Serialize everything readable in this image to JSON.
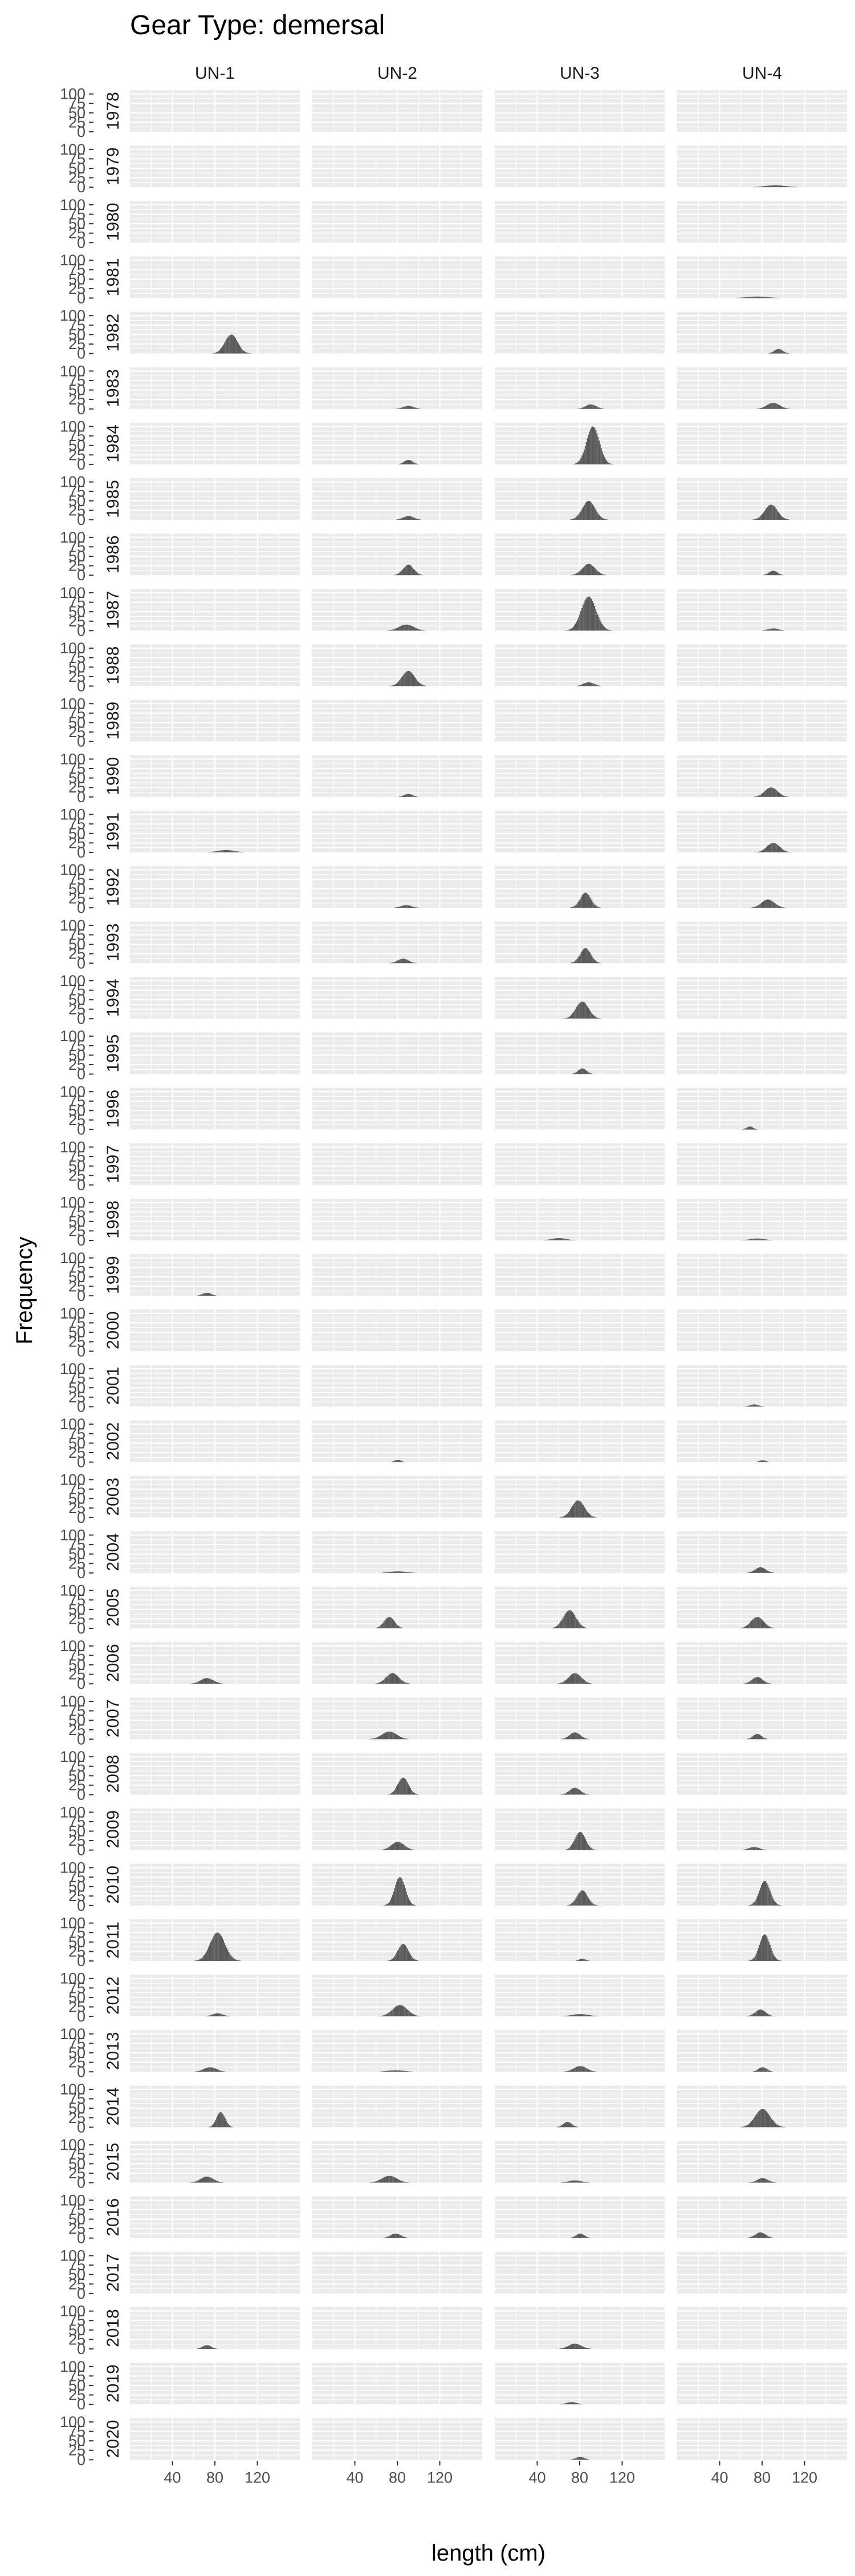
{
  "chart_data": {
    "type": "histogram-facet-grid",
    "title": "Gear Type: demersal",
    "xlabel": "length (cm)",
    "ylabel": "Frequency",
    "columns": [
      "UN-1",
      "UN-2",
      "UN-3",
      "UN-4"
    ],
    "rows": [
      "1978",
      "1979",
      "1980",
      "1981",
      "1982",
      "1983",
      "1984",
      "1985",
      "1986",
      "1987",
      "1988",
      "1989",
      "1990",
      "1991",
      "1992",
      "1993",
      "1994",
      "1995",
      "1996",
      "1997",
      "1998",
      "1999",
      "2000",
      "2001",
      "2002",
      "2003",
      "2004",
      "2005",
      "2006",
      "2007",
      "2008",
      "2009",
      "2010",
      "2011",
      "2012",
      "2013",
      "2014",
      "2015",
      "2016",
      "2017",
      "2018",
      "2019",
      "2020"
    ],
    "xlim": [
      0,
      160
    ],
    "x_ticks": [
      40,
      80,
      120
    ],
    "x_tick_labels": [
      "40",
      "80",
      "120"
    ],
    "ylim": [
      0,
      110
    ],
    "y_ticks": [
      0,
      25,
      50,
      75,
      100
    ],
    "y_tick_labels": [
      "0",
      "25",
      "50",
      "75",
      "100"
    ],
    "bar_color": "#595959",
    "panel_color": "#ebebeb",
    "gridline_color": "#ffffff",
    "distributions": [
      {
        "year": "1979",
        "column": "UN-4",
        "peak_length": 92,
        "spread": 10,
        "peak_count": 5
      },
      {
        "year": "1981",
        "column": "UN-4",
        "peak_length": 75,
        "spread": 10,
        "peak_count": 4
      },
      {
        "year": "1982",
        "column": "UN-1",
        "peak_length": 95,
        "spread": 6,
        "peak_count": 50
      },
      {
        "year": "1982",
        "column": "UN-4",
        "peak_length": 95,
        "spread": 4,
        "peak_count": 12
      },
      {
        "year": "1983",
        "column": "UN-2",
        "peak_length": 90,
        "spread": 5,
        "peak_count": 8
      },
      {
        "year": "1983",
        "column": "UN-3",
        "peak_length": 90,
        "spread": 5,
        "peak_count": 12
      },
      {
        "year": "1983",
        "column": "UN-4",
        "peak_length": 90,
        "spread": 6,
        "peak_count": 16
      },
      {
        "year": "1984",
        "column": "UN-2",
        "peak_length": 90,
        "spread": 4,
        "peak_count": 12
      },
      {
        "year": "1984",
        "column": "UN-3",
        "peak_length": 92,
        "spread": 6,
        "peak_count": 100
      },
      {
        "year": "1985",
        "column": "UN-2",
        "peak_length": 90,
        "spread": 5,
        "peak_count": 10
      },
      {
        "year": "1985",
        "column": "UN-3",
        "peak_length": 88,
        "spread": 6,
        "peak_count": 50
      },
      {
        "year": "1985",
        "column": "UN-4",
        "peak_length": 88,
        "spread": 6,
        "peak_count": 40
      },
      {
        "year": "1986",
        "column": "UN-2",
        "peak_length": 90,
        "spread": 5,
        "peak_count": 28
      },
      {
        "year": "1986",
        "column": "UN-3",
        "peak_length": 88,
        "spread": 6,
        "peak_count": 30
      },
      {
        "year": "1986",
        "column": "UN-4",
        "peak_length": 90,
        "spread": 4,
        "peak_count": 12
      },
      {
        "year": "1987",
        "column": "UN-2",
        "peak_length": 88,
        "spread": 7,
        "peak_count": 16
      },
      {
        "year": "1987",
        "column": "UN-3",
        "peak_length": 88,
        "spread": 7,
        "peak_count": 90
      },
      {
        "year": "1987",
        "column": "UN-4",
        "peak_length": 90,
        "spread": 5,
        "peak_count": 6
      },
      {
        "year": "1988",
        "column": "UN-2",
        "peak_length": 90,
        "spread": 6,
        "peak_count": 40
      },
      {
        "year": "1988",
        "column": "UN-3",
        "peak_length": 88,
        "spread": 5,
        "peak_count": 10
      },
      {
        "year": "1990",
        "column": "UN-2",
        "peak_length": 90,
        "spread": 4,
        "peak_count": 8
      },
      {
        "year": "1990",
        "column": "UN-4",
        "peak_length": 88,
        "spread": 6,
        "peak_count": 25
      },
      {
        "year": "1991",
        "column": "UN-1",
        "peak_length": 90,
        "spread": 8,
        "peak_count": 6
      },
      {
        "year": "1991",
        "column": "UN-4",
        "peak_length": 90,
        "spread": 6,
        "peak_count": 25
      },
      {
        "year": "1992",
        "column": "UN-2",
        "peak_length": 88,
        "spread": 5,
        "peak_count": 7
      },
      {
        "year": "1992",
        "column": "UN-3",
        "peak_length": 85,
        "spread": 5,
        "peak_count": 40
      },
      {
        "year": "1992",
        "column": "UN-4",
        "peak_length": 85,
        "spread": 6,
        "peak_count": 22
      },
      {
        "year": "1993",
        "column": "UN-2",
        "peak_length": 85,
        "spread": 5,
        "peak_count": 12
      },
      {
        "year": "1993",
        "column": "UN-3",
        "peak_length": 85,
        "spread": 5,
        "peak_count": 40
      },
      {
        "year": "1994",
        "column": "UN-3",
        "peak_length": 82,
        "spread": 6,
        "peak_count": 45
      },
      {
        "year": "1995",
        "column": "UN-3",
        "peak_length": 82,
        "spread": 4,
        "peak_count": 15
      },
      {
        "year": "1996",
        "column": "UN-4",
        "peak_length": 68,
        "spread": 3,
        "peak_count": 8
      },
      {
        "year": "1998",
        "column": "UN-3",
        "peak_length": 60,
        "spread": 7,
        "peak_count": 6
      },
      {
        "year": "1998",
        "column": "UN-4",
        "peak_length": 75,
        "spread": 7,
        "peak_count": 5
      },
      {
        "year": "1999",
        "column": "UN-1",
        "peak_length": 72,
        "spread": 4,
        "peak_count": 8
      },
      {
        "year": "2001",
        "column": "UN-4",
        "peak_length": 72,
        "spread": 4,
        "peak_count": 6
      },
      {
        "year": "2002",
        "column": "UN-2",
        "peak_length": 80,
        "spread": 3,
        "peak_count": 6
      },
      {
        "year": "2002",
        "column": "UN-4",
        "peak_length": 80,
        "spread": 3,
        "peak_count": 5
      },
      {
        "year": "2003",
        "column": "UN-3",
        "peak_length": 78,
        "spread": 6,
        "peak_count": 45
      },
      {
        "year": "2004",
        "column": "UN-2",
        "peak_length": 80,
        "spread": 8,
        "peak_count": 4
      },
      {
        "year": "2004",
        "column": "UN-4",
        "peak_length": 78,
        "spread": 5,
        "peak_count": 15
      },
      {
        "year": "2005",
        "column": "UN-2",
        "peak_length": 72,
        "spread": 5,
        "peak_count": 30
      },
      {
        "year": "2005",
        "column": "UN-3",
        "peak_length": 70,
        "spread": 6,
        "peak_count": 48
      },
      {
        "year": "2005",
        "column": "UN-4",
        "peak_length": 75,
        "spread": 6,
        "peak_count": 30
      },
      {
        "year": "2006",
        "column": "UN-1",
        "peak_length": 72,
        "spread": 6,
        "peak_count": 15
      },
      {
        "year": "2006",
        "column": "UN-2",
        "peak_length": 75,
        "spread": 6,
        "peak_count": 28
      },
      {
        "year": "2006",
        "column": "UN-3",
        "peak_length": 75,
        "spread": 6,
        "peak_count": 28
      },
      {
        "year": "2006",
        "column": "UN-4",
        "peak_length": 75,
        "spread": 5,
        "peak_count": 18
      },
      {
        "year": "2007",
        "column": "UN-2",
        "peak_length": 72,
        "spread": 7,
        "peak_count": 20
      },
      {
        "year": "2007",
        "column": "UN-3",
        "peak_length": 75,
        "spread": 5,
        "peak_count": 18
      },
      {
        "year": "2007",
        "column": "UN-4",
        "peak_length": 75,
        "spread": 4,
        "peak_count": 14
      },
      {
        "year": "2008",
        "column": "UN-2",
        "peak_length": 85,
        "spread": 5,
        "peak_count": 45
      },
      {
        "year": "2008",
        "column": "UN-3",
        "peak_length": 75,
        "spread": 5,
        "peak_count": 18
      },
      {
        "year": "2009",
        "column": "UN-2",
        "peak_length": 80,
        "spread": 6,
        "peak_count": 22
      },
      {
        "year": "2009",
        "column": "UN-3",
        "peak_length": 80,
        "spread": 5,
        "peak_count": 48
      },
      {
        "year": "2009",
        "column": "UN-4",
        "peak_length": 72,
        "spread": 5,
        "peak_count": 8
      },
      {
        "year": "2010",
        "column": "UN-2",
        "peak_length": 82,
        "spread": 5,
        "peak_count": 75
      },
      {
        "year": "2010",
        "column": "UN-3",
        "peak_length": 82,
        "spread": 5,
        "peak_count": 40
      },
      {
        "year": "2010",
        "column": "UN-4",
        "peak_length": 82,
        "spread": 5,
        "peak_count": 65
      },
      {
        "year": "2011",
        "column": "UN-1",
        "peak_length": 82,
        "spread": 7,
        "peak_count": 75
      },
      {
        "year": "2011",
        "column": "UN-2",
        "peak_length": 85,
        "spread": 5,
        "peak_count": 45
      },
      {
        "year": "2011",
        "column": "UN-3",
        "peak_length": 82,
        "spread": 3,
        "peak_count": 6
      },
      {
        "year": "2011",
        "column": "UN-4",
        "peak_length": 82,
        "spread": 5,
        "peak_count": 70
      },
      {
        "year": "2012",
        "column": "UN-1",
        "peak_length": 82,
        "spread": 5,
        "peak_count": 8
      },
      {
        "year": "2012",
        "column": "UN-2",
        "peak_length": 82,
        "spread": 7,
        "peak_count": 30
      },
      {
        "year": "2012",
        "column": "UN-3",
        "peak_length": 80,
        "spread": 8,
        "peak_count": 6
      },
      {
        "year": "2012",
        "column": "UN-4",
        "peak_length": 78,
        "spread": 5,
        "peak_count": 18
      },
      {
        "year": "2013",
        "column": "UN-1",
        "peak_length": 75,
        "spread": 6,
        "peak_count": 12
      },
      {
        "year": "2013",
        "column": "UN-2",
        "peak_length": 78,
        "spread": 8,
        "peak_count": 4
      },
      {
        "year": "2013",
        "column": "UN-3",
        "peak_length": 80,
        "spread": 6,
        "peak_count": 15
      },
      {
        "year": "2013",
        "column": "UN-4",
        "peak_length": 80,
        "spread": 4,
        "peak_count": 12
      },
      {
        "year": "2014",
        "column": "UN-1",
        "peak_length": 85,
        "spread": 4,
        "peak_count": 40
      },
      {
        "year": "2014",
        "column": "UN-3",
        "peak_length": 68,
        "spread": 4,
        "peak_count": 14
      },
      {
        "year": "2014",
        "column": "UN-4",
        "peak_length": 80,
        "spread": 7,
        "peak_count": 48
      },
      {
        "year": "2015",
        "column": "UN-1",
        "peak_length": 72,
        "spread": 6,
        "peak_count": 16
      },
      {
        "year": "2015",
        "column": "UN-2",
        "peak_length": 72,
        "spread": 7,
        "peak_count": 18
      },
      {
        "year": "2015",
        "column": "UN-3",
        "peak_length": 75,
        "spread": 6,
        "peak_count": 6
      },
      {
        "year": "2015",
        "column": "UN-4",
        "peak_length": 80,
        "spread": 5,
        "peak_count": 12
      },
      {
        "year": "2016",
        "column": "UN-2",
        "peak_length": 78,
        "spread": 5,
        "peak_count": 12
      },
      {
        "year": "2016",
        "column": "UN-3",
        "peak_length": 80,
        "spread": 4,
        "peak_count": 12
      },
      {
        "year": "2016",
        "column": "UN-4",
        "peak_length": 78,
        "spread": 5,
        "peak_count": 15
      },
      {
        "year": "2018",
        "column": "UN-1",
        "peak_length": 72,
        "spread": 4,
        "peak_count": 10
      },
      {
        "year": "2018",
        "column": "UN-3",
        "peak_length": 75,
        "spread": 6,
        "peak_count": 14
      },
      {
        "year": "2019",
        "column": "UN-3",
        "peak_length": 72,
        "spread": 5,
        "peak_count": 6
      },
      {
        "year": "2020",
        "column": "UN-3",
        "peak_length": 80,
        "spread": 4,
        "peak_count": 8
      }
    ]
  }
}
